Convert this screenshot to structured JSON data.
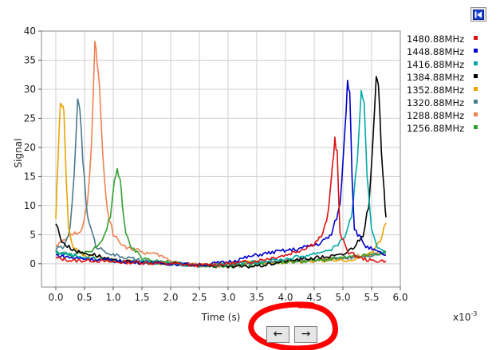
{
  "toolbar": {
    "corner_button_icon": "skip-to-start-icon"
  },
  "navigation": {
    "prev_label": "←",
    "next_label": "→"
  },
  "annotation": {
    "color": "#ff0000",
    "shape": "hand-drawn-circle"
  },
  "chart_data": {
    "type": "line",
    "title": "",
    "xlabel": "Time (s)",
    "ylabel": "Signal",
    "x_multiplier_label": "x10",
    "x_multiplier_exponent": "-3",
    "xlim": [
      -0.25,
      6.0
    ],
    "ylim": [
      -4,
      40
    ],
    "xticks": [
      "0.0",
      "0.5",
      "1.0",
      "1.5",
      "2.0",
      "2.5",
      "3.0",
      "3.5",
      "4.0",
      "4.5",
      "5.0",
      "5.5",
      "6.0"
    ],
    "yticks": [
      "0",
      "5",
      "10",
      "15",
      "20",
      "25",
      "30",
      "35",
      "40"
    ],
    "grid": true,
    "legend_position": "right",
    "series": [
      {
        "name": "1480.88MHz",
        "color": "#dd1010",
        "x": [
          0.0,
          0.3,
          0.6,
          1.0,
          1.5,
          2.0,
          2.5,
          3.0,
          3.5,
          4.0,
          4.3,
          4.5,
          4.65,
          4.75,
          4.82,
          4.86,
          4.9,
          4.95,
          5.1,
          5.3,
          5.5,
          5.75
        ],
        "y": [
          1,
          0.5,
          0.6,
          0.3,
          0.2,
          0,
          -0.3,
          0,
          0.5,
          1.5,
          2.5,
          3.5,
          5,
          9,
          17,
          21.5,
          19,
          5,
          2,
          1,
          0.5,
          0.5
        ]
      },
      {
        "name": "1448.88MHz",
        "color": "#0000cc",
        "x": [
          0.0,
          0.3,
          0.6,
          1.0,
          1.5,
          2.0,
          2.5,
          3.0,
          3.5,
          3.8,
          4.2,
          4.6,
          4.8,
          4.95,
          5.03,
          5.08,
          5.12,
          5.16,
          5.2,
          5.4,
          5.6,
          5.75
        ],
        "y": [
          1.5,
          1,
          0.8,
          0.5,
          0.2,
          0,
          -0.2,
          0.3,
          1.5,
          2,
          2.5,
          3.5,
          5,
          10,
          22,
          31.5,
          30,
          15,
          6,
          3,
          2,
          1.5
        ]
      },
      {
        "name": "1416.88MHz",
        "color": "#00a8a8",
        "x": [
          0.0,
          0.3,
          0.6,
          1.0,
          1.5,
          2.0,
          2.5,
          3.0,
          3.5,
          4.0,
          4.4,
          4.8,
          5.0,
          5.15,
          5.25,
          5.32,
          5.37,
          5.42,
          5.5,
          5.6,
          5.75
        ],
        "y": [
          2,
          1.5,
          1,
          0.5,
          0.3,
          0,
          -0.3,
          0,
          0.3,
          0.8,
          1.5,
          2.5,
          4,
          8,
          18,
          29,
          27,
          15,
          6,
          3,
          2
        ]
      },
      {
        "name": "1384.88MHz",
        "color": "#000000",
        "x": [
          0.0,
          0.1,
          0.2,
          0.4,
          0.7,
          1.0,
          1.5,
          2.0,
          2.5,
          3.0,
          3.3,
          3.6,
          4.0,
          4.5,
          5.0,
          5.2,
          5.35,
          5.45,
          5.52,
          5.58,
          5.62,
          5.67,
          5.72,
          5.75
        ],
        "y": [
          7,
          4,
          3,
          2,
          1.5,
          0.5,
          0.2,
          0,
          -0.2,
          -0.5,
          -0.5,
          -0.3,
          0.5,
          1,
          1.5,
          3,
          5,
          10,
          20,
          32,
          30,
          20,
          12,
          8
        ]
      },
      {
        "name": "1352.88MHz",
        "color": "#e8a400",
        "x": [
          0.0,
          0.04,
          0.08,
          0.11,
          0.14,
          0.18,
          0.22,
          0.3,
          0.5,
          1.0,
          1.5,
          2.0,
          2.5,
          3.0,
          3.5,
          4.0,
          4.5,
          5.0,
          5.3,
          5.5,
          5.65,
          5.75
        ],
        "y": [
          8,
          18,
          28,
          27,
          27,
          15,
          6,
          3,
          1.5,
          0.5,
          0.2,
          0,
          -0.3,
          0,
          0.2,
          0.3,
          0.5,
          0.5,
          1,
          2,
          4,
          7
        ]
      },
      {
        "name": "1320.88MHz",
        "color": "#4a7a8c",
        "x": [
          0.0,
          0.15,
          0.25,
          0.32,
          0.38,
          0.42,
          0.47,
          0.55,
          0.7,
          1.0,
          1.5,
          2.0,
          2.5,
          3.0,
          3.5,
          4.0,
          4.5,
          5.0,
          5.5,
          5.75
        ],
        "y": [
          2.5,
          3,
          6,
          15,
          28.5,
          27,
          18,
          8,
          3,
          1.5,
          0.5,
          0,
          -0.3,
          0,
          0.2,
          0.5,
          0.5,
          1,
          1.5,
          2
        ]
      },
      {
        "name": "1288.88MHz",
        "color": "#f08050",
        "x": [
          0.0,
          0.15,
          0.3,
          0.45,
          0.55,
          0.62,
          0.68,
          0.72,
          0.76,
          0.82,
          0.9,
          1.0,
          1.2,
          1.5,
          1.8,
          2.0,
          2.5,
          3.0,
          3.5,
          4.0,
          4.5,
          5.0,
          5.5,
          5.75
        ],
        "y": [
          3,
          4,
          5,
          6,
          10,
          20,
          38,
          35,
          30,
          18,
          9,
          5,
          3,
          2,
          1.5,
          0.5,
          -0.2,
          -0.5,
          0,
          0.5,
          0.5,
          1,
          1.5,
          2
        ]
      },
      {
        "name": "1256.88MHz",
        "color": "#30a030",
        "x": [
          0.0,
          0.3,
          0.6,
          0.8,
          0.95,
          1.02,
          1.07,
          1.12,
          1.16,
          1.22,
          1.3,
          1.5,
          2.0,
          2.5,
          3.0,
          3.5,
          4.0,
          4.5,
          5.0,
          5.5,
          5.75
        ],
        "y": [
          2,
          1.5,
          2,
          4,
          8,
          14,
          16,
          15,
          10,
          5,
          3,
          1,
          0.2,
          -0.3,
          -0.5,
          -0.2,
          0.3,
          0.5,
          1,
          1.5,
          2
        ]
      }
    ]
  }
}
